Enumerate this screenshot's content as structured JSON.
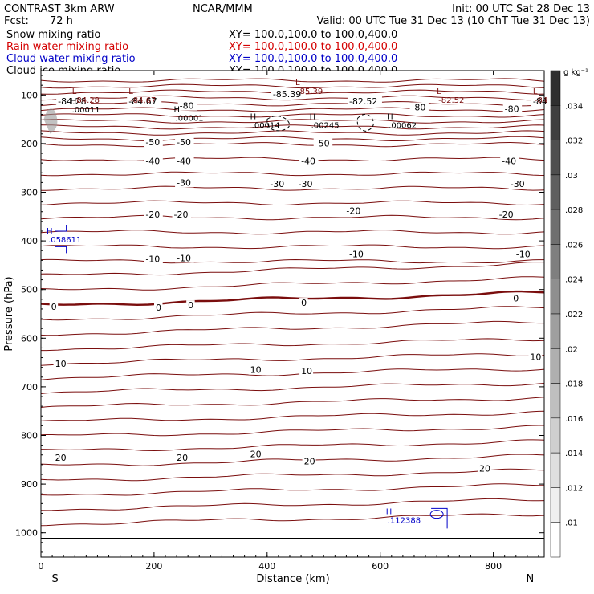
{
  "header": {
    "title": "CONTRAST  3km ARW",
    "org": "NCAR/MMM",
    "init": "Init: 00 UTC Sat 28 Dec 13",
    "fcst_label": "Fcst:",
    "fcst_value": "72 h",
    "valid": "Valid: 00 UTC Tue 31 Dec 13 (10 ChT Tue 31 Dec 13)"
  },
  "fields": [
    {
      "name": "Snow mixing ratio",
      "xy": "XY= 100.0,100.0 to 100.0,400.0",
      "color": "#000000"
    },
    {
      "name": "Rain water mixing ratio",
      "xy": "XY= 100.0,100.0 to 100.0,400.0",
      "color": "#d40000"
    },
    {
      "name": "Cloud water mixing ratio",
      "xy": "XY= 100.0,100.0 to 100.0,400.0",
      "color": "#0000c8"
    },
    {
      "name": "Cloud ice mixing ratio",
      "xy": "XY= 100.0,100.0 to 100.0,400.0",
      "color": "#000000"
    }
  ],
  "chart_data": {
    "type": "contour cross-section",
    "xlabel": "Distance (km)",
    "ylabel": "Pressure (hPa)",
    "xlim": [
      0,
      890
    ],
    "ylim": [
      1050,
      50
    ],
    "x_ticks": [
      0,
      200,
      400,
      600,
      800
    ],
    "y_ticks": [
      100,
      200,
      300,
      400,
      500,
      600,
      700,
      800,
      900,
      1000
    ],
    "endpoint_left": "S",
    "endpoint_right": "N",
    "colorbar": {
      "unit": "g kg⁻¹",
      "ticks": [
        ".01",
        ".012",
        ".014",
        ".016",
        ".018",
        ".02",
        ".022",
        ".024",
        ".026",
        ".028",
        ".03",
        ".032",
        ".034"
      ]
    },
    "temperature_contour_color": "#7a0d0d",
    "temperature_labels": [
      {
        "text": "-84.28",
        "x": 30,
        "p": 118
      },
      {
        "text": "-84.67",
        "x": 155,
        "p": 118
      },
      {
        "text": "-85.39",
        "x": 410,
        "p": 103
      },
      {
        "text": "-82.52",
        "x": 545,
        "p": 118
      },
      {
        "text": "-84",
        "x": 870,
        "p": 118
      },
      {
        "text": "-80",
        "x": 245,
        "p": 127
      },
      {
        "text": "-80",
        "x": 655,
        "p": 130
      },
      {
        "text": "-80",
        "x": 820,
        "p": 133
      },
      {
        "text": "-50",
        "x": 185,
        "p": 202
      },
      {
        "text": "-50",
        "x": 240,
        "p": 202
      },
      {
        "text": "-50",
        "x": 485,
        "p": 204
      },
      {
        "text": "-40",
        "x": 185,
        "p": 241
      },
      {
        "text": "-40",
        "x": 240,
        "p": 241
      },
      {
        "text": "-40",
        "x": 460,
        "p": 241
      },
      {
        "text": "-40",
        "x": 815,
        "p": 241
      },
      {
        "text": "-30",
        "x": 240,
        "p": 285
      },
      {
        "text": "-30",
        "x": 405,
        "p": 288
      },
      {
        "text": "-30",
        "x": 455,
        "p": 288
      },
      {
        "text": "-30",
        "x": 830,
        "p": 288
      },
      {
        "text": "-20",
        "x": 185,
        "p": 350
      },
      {
        "text": "-20",
        "x": 235,
        "p": 350
      },
      {
        "text": "-20",
        "x": 540,
        "p": 343
      },
      {
        "text": "-20",
        "x": 810,
        "p": 350
      },
      {
        "text": "-10",
        "x": 185,
        "p": 442
      },
      {
        "text": "-10",
        "x": 240,
        "p": 440
      },
      {
        "text": "-10",
        "x": 545,
        "p": 432
      },
      {
        "text": "-10",
        "x": 840,
        "p": 432
      },
      {
        "text": "0",
        "x": 18,
        "p": 540
      },
      {
        "text": "0",
        "x": 203,
        "p": 542
      },
      {
        "text": "0",
        "x": 260,
        "p": 537
      },
      {
        "text": "0",
        "x": 460,
        "p": 532
      },
      {
        "text": "0",
        "x": 835,
        "p": 523
      },
      {
        "text": "10",
        "x": 25,
        "p": 657
      },
      {
        "text": "10",
        "x": 370,
        "p": 670
      },
      {
        "text": "10",
        "x": 460,
        "p": 672
      },
      {
        "text": "10",
        "x": 865,
        "p": 643
      },
      {
        "text": "20",
        "x": 25,
        "p": 850
      },
      {
        "text": "20",
        "x": 240,
        "p": 850
      },
      {
        "text": "20",
        "x": 370,
        "p": 843
      },
      {
        "text": "20",
        "x": 465,
        "p": 858
      },
      {
        "text": "20",
        "x": 775,
        "p": 873
      }
    ],
    "extrema": [
      {
        "mark": "L",
        "value": "-84.28",
        "x": 55,
        "p": 98,
        "color": "#7a0d0d"
      },
      {
        "mark": "L",
        "value": "-84.67",
        "x": 155,
        "p": 98,
        "color": "#7a0d0d"
      },
      {
        "mark": "L",
        "value": "-85.39",
        "x": 450,
        "p": 80,
        "color": "#7a0d0d"
      },
      {
        "mark": "L",
        "value": "-82.52",
        "x": 700,
        "p": 98,
        "color": "#7a0d0d"
      },
      {
        "mark": "L",
        "value": "-84",
        "x": 870,
        "p": 98,
        "color": "#7a0d0d"
      },
      {
        "mark": "H",
        "value": ".00011",
        "x": 52,
        "p": 118,
        "color": "#000000"
      },
      {
        "mark": "H",
        "value": ".00001",
        "x": 235,
        "p": 135,
        "color": "#000000"
      },
      {
        "mark": "H",
        "value": ".00014",
        "x": 370,
        "p": 150,
        "color": "#000000"
      },
      {
        "mark": "H",
        "value": ".00245",
        "x": 475,
        "p": 150,
        "color": "#000000"
      },
      {
        "mark": "H",
        "value": ".00062",
        "x": 612,
        "p": 150,
        "color": "#000000"
      },
      {
        "mark": "H",
        "value": ".058611",
        "x": 10,
        "p": 385,
        "color": "#0000c8"
      },
      {
        "mark": "H",
        "value": ".112388",
        "x": 610,
        "p": 962,
        "color": "#0000c8"
      }
    ]
  }
}
